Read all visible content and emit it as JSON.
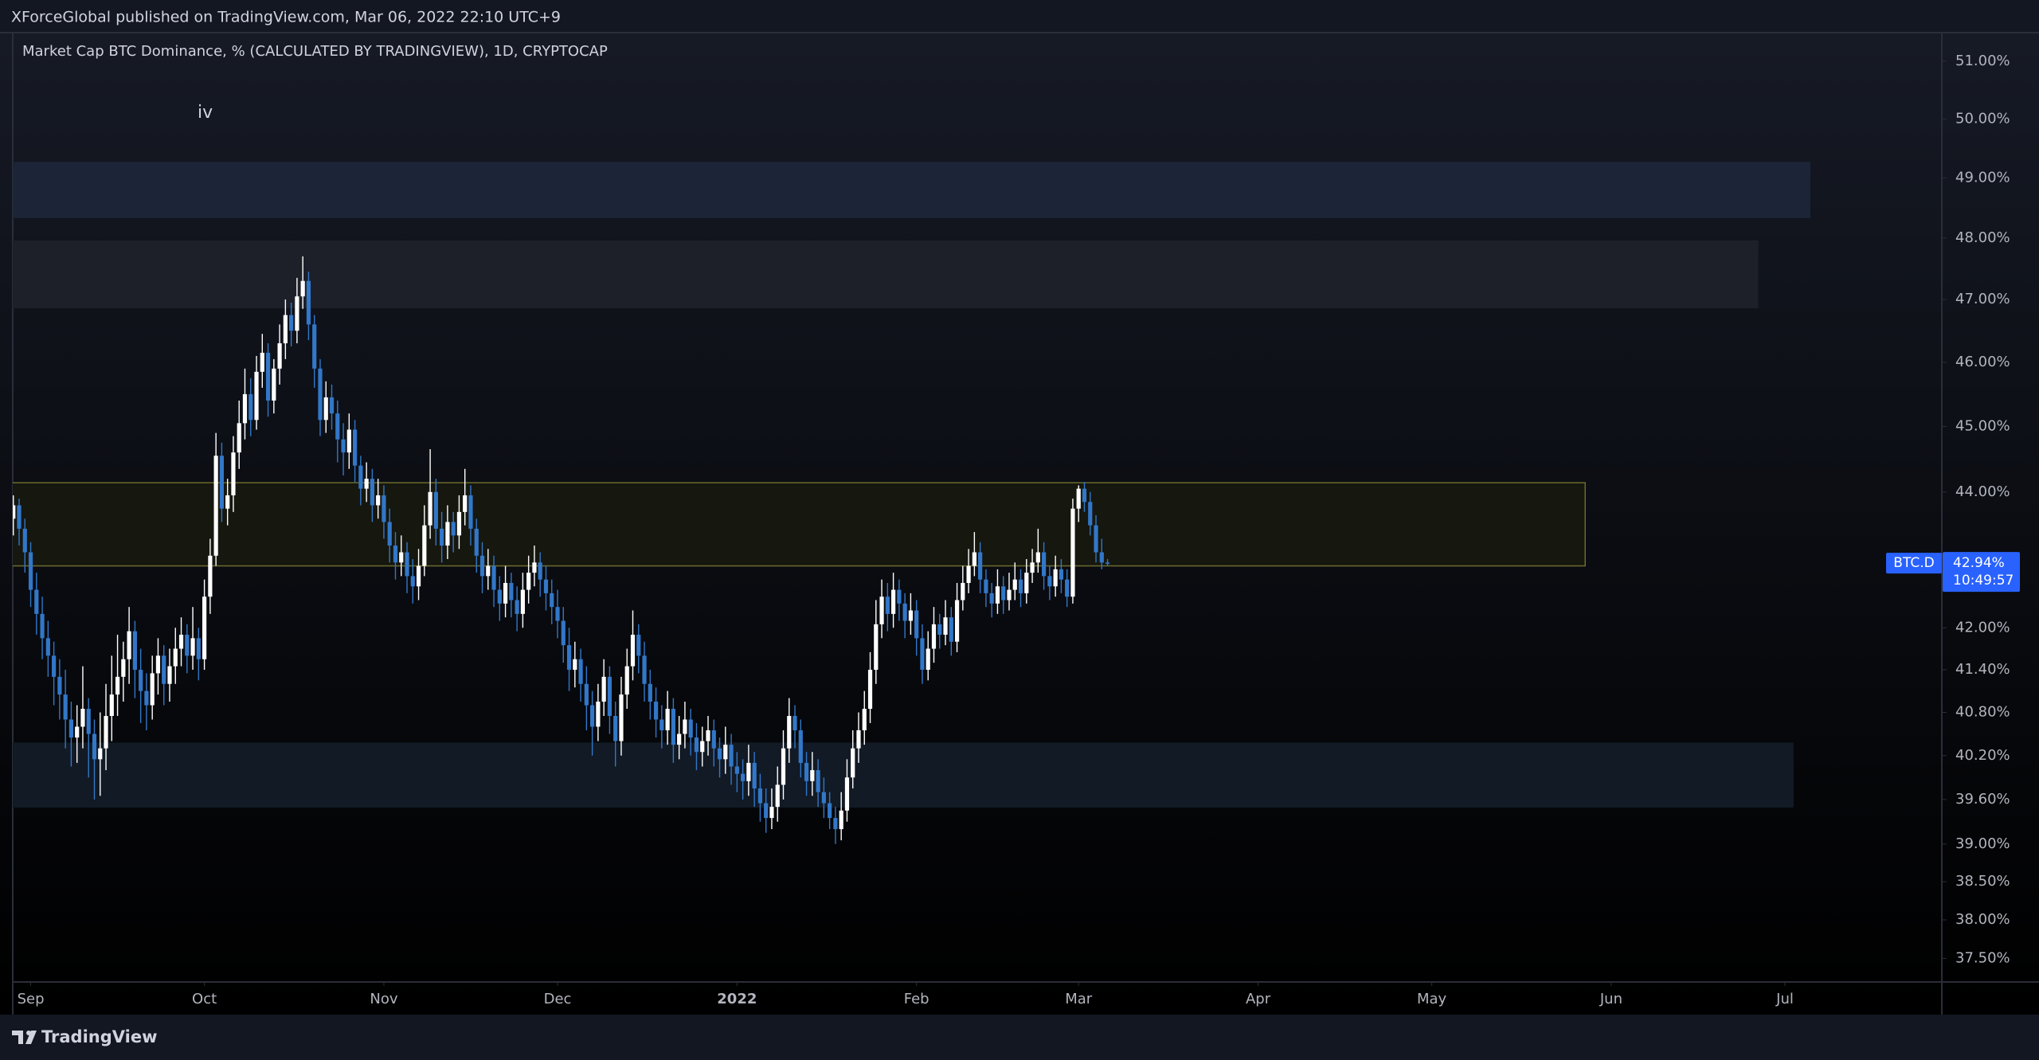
{
  "chart_data": {
    "type": "candlestick",
    "publisher_line": "XForceGlobal published on TradingView.com, Mar 06, 2022 22:10 UTC+9",
    "title": "Market Cap BTC Dominance, % (CALCULATED BY TRADINGVIEW), 1D, CRYPTOCAP",
    "annotation": "iv",
    "brand": "TradingView",
    "symbol": "BTC.D",
    "last": {
      "value": 42.94,
      "label": "42.94%"
    },
    "countdown": "10:49:57",
    "log_scale": true,
    "grid": false,
    "up_color": "#ffffff",
    "down_color": "#3277c8",
    "ylim": [
      37.2,
      51.5
    ],
    "yticks": [
      {
        "value": 37.5,
        "label": "37.50%"
      },
      {
        "value": 38,
        "label": "38.00%"
      },
      {
        "value": 38.5,
        "label": "38.50%"
      },
      {
        "value": 39,
        "label": "39.00%"
      },
      {
        "value": 39.6,
        "label": "39.60%"
      },
      {
        "value": 40.2,
        "label": "40.20%"
      },
      {
        "value": 40.8,
        "label": "40.80%"
      },
      {
        "value": 41.4,
        "label": "41.40%"
      },
      {
        "value": 42,
        "label": "42.00%"
      },
      {
        "value": 44,
        "label": "44.00%"
      },
      {
        "value": 45,
        "label": "45.00%"
      },
      {
        "value": 46,
        "label": "46.00%"
      },
      {
        "value": 47,
        "label": "47.00%"
      },
      {
        "value": 48,
        "label": "48.00%"
      },
      {
        "value": 49,
        "label": "49.00%"
      },
      {
        "value": 50,
        "label": "50.00%"
      },
      {
        "value": 51,
        "label": "51.00%"
      }
    ],
    "xlim": [
      -3.1,
      330.1
    ],
    "xticks": [
      {
        "value": 0,
        "label": "Sep"
      },
      {
        "value": 30,
        "label": "Oct"
      },
      {
        "value": 61,
        "label": "Nov"
      },
      {
        "value": 91,
        "label": "Dec"
      },
      {
        "value": 122,
        "label": "2022"
      },
      {
        "value": 153,
        "label": "Feb"
      },
      {
        "value": 181,
        "label": "Mar"
      },
      {
        "value": 212,
        "label": "Apr"
      },
      {
        "value": 242,
        "label": "May"
      },
      {
        "value": 273,
        "label": "Jun"
      },
      {
        "value": 303,
        "label": "Jul"
      }
    ],
    "zones": [
      {
        "ylim": [
          48.33,
          49.27
        ],
        "x_end": 307.4,
        "color": "#1b2537",
        "border": "none"
      },
      {
        "ylim": [
          46.86,
          47.96
        ],
        "x_end": 298.4,
        "color": "#1d2029",
        "border": "none"
      },
      {
        "ylim": [
          42.9,
          44.14
        ],
        "x_end": 268.5,
        "color": "#16170f",
        "border": "#6b6b2c"
      },
      {
        "ylim": [
          39.49,
          40.38
        ],
        "x_end": 304.5,
        "color": "#121a25",
        "border": "none"
      }
    ],
    "x": [
      -3,
      -2,
      -1,
      0,
      1,
      2,
      3,
      4,
      5,
      6,
      7,
      8,
      9,
      10,
      11,
      12,
      13,
      14,
      15,
      16,
      17,
      18,
      19,
      20,
      21,
      22,
      23,
      24,
      25,
      26,
      27,
      28,
      29,
      30,
      31,
      32,
      33,
      34,
      35,
      36,
      37,
      38,
      39,
      40,
      41,
      42,
      43,
      44,
      45,
      46,
      47,
      48,
      49,
      50,
      51,
      52,
      53,
      54,
      55,
      56,
      57,
      58,
      59,
      60,
      61,
      62,
      63,
      64,
      65,
      66,
      67,
      68,
      69,
      70,
      71,
      72,
      73,
      74,
      75,
      76,
      77,
      78,
      79,
      80,
      81,
      82,
      83,
      84,
      85,
      86,
      87,
      88,
      89,
      90,
      91,
      92,
      93,
      94,
      95,
      96,
      97,
      98,
      99,
      100,
      101,
      102,
      103,
      104,
      105,
      106,
      107,
      108,
      109,
      110,
      111,
      112,
      113,
      114,
      115,
      116,
      117,
      118,
      119,
      120,
      121,
      122,
      123,
      124,
      125,
      126,
      127,
      128,
      129,
      130,
      131,
      132,
      133,
      134,
      135,
      136,
      137,
      138,
      139,
      140,
      141,
      142,
      143,
      144,
      145,
      146,
      147,
      148,
      149,
      150,
      151,
      152,
      153,
      154,
      155,
      156,
      157,
      158,
      159,
      160,
      161,
      162,
      163,
      164,
      165,
      166,
      167,
      168,
      169,
      170,
      171,
      172,
      173,
      174,
      175,
      176,
      177,
      178,
      179,
      180,
      181,
      182,
      183,
      184,
      185,
      186
    ],
    "ohlc": [
      [
        43.6,
        43.95,
        43.35,
        43.8
      ],
      [
        43.8,
        43.9,
        43.2,
        43.45
      ],
      [
        43.45,
        43.6,
        42.8,
        43.1
      ],
      [
        43.1,
        43.25,
        42.3,
        42.55
      ],
      [
        42.55,
        42.8,
        41.9,
        42.2
      ],
      [
        42.2,
        42.45,
        41.55,
        41.85
      ],
      [
        41.85,
        42.1,
        41.3,
        41.6
      ],
      [
        41.6,
        41.8,
        40.9,
        41.3
      ],
      [
        41.3,
        41.55,
        40.7,
        41.05
      ],
      [
        41.05,
        41.4,
        40.3,
        40.7
      ],
      [
        40.7,
        40.95,
        40.05,
        40.45
      ],
      [
        40.45,
        40.9,
        40.1,
        40.6
      ],
      [
        40.6,
        41.45,
        40.3,
        40.85
      ],
      [
        40.85,
        41.0,
        39.9,
        40.5
      ],
      [
        40.5,
        40.7,
        39.6,
        40.15
      ],
      [
        40.15,
        40.8,
        39.65,
        40.3
      ],
      [
        40.3,
        41.2,
        40.0,
        40.75
      ],
      [
        40.75,
        41.6,
        40.4,
        41.05
      ],
      [
        41.05,
        41.9,
        40.75,
        41.3
      ],
      [
        41.3,
        41.8,
        40.95,
        41.55
      ],
      [
        41.55,
        42.3,
        41.2,
        41.95
      ],
      [
        41.95,
        42.1,
        41.0,
        41.4
      ],
      [
        41.4,
        41.7,
        40.65,
        41.1
      ],
      [
        41.1,
        41.35,
        40.55,
        40.9
      ],
      [
        40.9,
        41.6,
        40.7,
        41.35
      ],
      [
        41.35,
        41.85,
        41.05,
        41.6
      ],
      [
        41.6,
        41.75,
        40.9,
        41.2
      ],
      [
        41.2,
        41.7,
        40.95,
        41.45
      ],
      [
        41.45,
        42.0,
        41.2,
        41.7
      ],
      [
        41.7,
        42.15,
        41.45,
        41.9
      ],
      [
        41.9,
        42.05,
        41.35,
        41.6
      ],
      [
        41.6,
        42.3,
        41.4,
        41.85
      ],
      [
        41.85,
        42.0,
        41.25,
        41.55
      ],
      [
        41.55,
        42.7,
        41.4,
        42.45
      ],
      [
        42.45,
        43.3,
        42.2,
        43.05
      ],
      [
        43.05,
        44.9,
        42.9,
        44.55
      ],
      [
        44.55,
        44.75,
        43.55,
        43.75
      ],
      [
        43.75,
        44.2,
        43.5,
        43.95
      ],
      [
        43.95,
        44.85,
        43.7,
        44.6
      ],
      [
        44.6,
        45.4,
        44.35,
        45.05
      ],
      [
        45.05,
        45.9,
        44.8,
        45.5
      ],
      [
        45.5,
        45.75,
        44.85,
        45.1
      ],
      [
        45.1,
        46.1,
        44.95,
        45.85
      ],
      [
        45.85,
        46.45,
        45.6,
        46.15
      ],
      [
        46.15,
        46.3,
        45.15,
        45.4
      ],
      [
        45.4,
        46.05,
        45.2,
        45.9
      ],
      [
        45.9,
        46.6,
        45.65,
        46.3
      ],
      [
        46.3,
        47.0,
        46.05,
        46.75
      ],
      [
        46.75,
        46.95,
        46.25,
        46.5
      ],
      [
        46.5,
        47.35,
        46.3,
        47.05
      ],
      [
        47.05,
        47.7,
        46.85,
        47.3
      ],
      [
        47.3,
        47.45,
        46.35,
        46.6
      ],
      [
        46.6,
        46.75,
        45.6,
        45.9
      ],
      [
        45.9,
        46.05,
        44.85,
        45.1
      ],
      [
        45.1,
        45.7,
        44.9,
        45.45
      ],
      [
        45.45,
        45.65,
        44.95,
        45.2
      ],
      [
        45.2,
        45.4,
        44.45,
        44.8
      ],
      [
        44.8,
        45.05,
        44.25,
        44.6
      ],
      [
        44.6,
        45.2,
        44.35,
        44.95
      ],
      [
        44.95,
        45.1,
        44.15,
        44.4
      ],
      [
        44.4,
        44.55,
        43.8,
        44.05
      ],
      [
        44.05,
        44.45,
        43.85,
        44.2
      ],
      [
        44.2,
        44.35,
        43.55,
        43.8
      ],
      [
        43.8,
        44.2,
        43.6,
        43.95
      ],
      [
        43.95,
        44.1,
        43.3,
        43.55
      ],
      [
        43.55,
        43.75,
        42.95,
        43.2
      ],
      [
        43.2,
        43.4,
        42.7,
        42.95
      ],
      [
        42.95,
        43.35,
        42.75,
        43.1
      ],
      [
        43.1,
        43.25,
        42.5,
        42.75
      ],
      [
        42.75,
        43.0,
        42.35,
        42.6
      ],
      [
        42.6,
        43.15,
        42.4,
        42.9
      ],
      [
        42.9,
        43.8,
        42.75,
        43.5
      ],
      [
        43.5,
        44.65,
        43.3,
        44.0
      ],
      [
        44.0,
        44.2,
        43.2,
        43.45
      ],
      [
        43.45,
        43.7,
        42.95,
        43.2
      ],
      [
        43.2,
        43.8,
        43.0,
        43.55
      ],
      [
        43.55,
        43.7,
        43.1,
        43.35
      ],
      [
        43.35,
        43.95,
        43.15,
        43.7
      ],
      [
        43.7,
        44.35,
        43.5,
        43.95
      ],
      [
        43.95,
        44.1,
        43.2,
        43.45
      ],
      [
        43.45,
        43.6,
        42.8,
        43.05
      ],
      [
        43.05,
        43.25,
        42.5,
        42.75
      ],
      [
        42.75,
        43.15,
        42.55,
        42.9
      ],
      [
        42.9,
        43.05,
        42.3,
        42.55
      ],
      [
        42.55,
        42.75,
        42.1,
        42.35
      ],
      [
        42.35,
        42.9,
        42.15,
        42.65
      ],
      [
        42.65,
        42.8,
        42.15,
        42.4
      ],
      [
        42.4,
        42.6,
        41.95,
        42.2
      ],
      [
        42.2,
        42.8,
        42.0,
        42.55
      ],
      [
        42.55,
        43.05,
        42.35,
        42.8
      ],
      [
        42.8,
        43.2,
        42.6,
        42.95
      ],
      [
        42.95,
        43.1,
        42.45,
        42.7
      ],
      [
        42.7,
        42.9,
        42.25,
        42.5
      ],
      [
        42.5,
        42.7,
        42.05,
        42.3
      ],
      [
        42.3,
        42.55,
        41.85,
        42.1
      ],
      [
        42.1,
        42.3,
        41.5,
        41.75
      ],
      [
        41.75,
        42.0,
        41.1,
        41.4
      ],
      [
        41.4,
        41.8,
        41.15,
        41.55
      ],
      [
        41.55,
        41.7,
        40.95,
        41.2
      ],
      [
        41.2,
        41.45,
        40.55,
        40.9
      ],
      [
        40.9,
        41.1,
        40.2,
        40.6
      ],
      [
        40.6,
        41.2,
        40.4,
        40.95
      ],
      [
        40.95,
        41.55,
        40.75,
        41.3
      ],
      [
        41.3,
        41.45,
        40.5,
        40.75
      ],
      [
        40.75,
        40.95,
        40.05,
        40.4
      ],
      [
        40.4,
        41.3,
        40.2,
        41.05
      ],
      [
        41.05,
        41.7,
        40.85,
        41.45
      ],
      [
        41.45,
        42.25,
        41.25,
        41.9
      ],
      [
        41.9,
        42.05,
        41.35,
        41.6
      ],
      [
        41.6,
        41.8,
        40.95,
        41.2
      ],
      [
        41.2,
        41.4,
        40.7,
        40.95
      ],
      [
        40.95,
        41.15,
        40.45,
        40.7
      ],
      [
        40.7,
        40.9,
        40.3,
        40.55
      ],
      [
        40.55,
        41.1,
        40.35,
        40.85
      ],
      [
        40.85,
        41.0,
        40.1,
        40.35
      ],
      [
        40.35,
        40.75,
        40.15,
        40.5
      ],
      [
        40.5,
        40.95,
        40.3,
        40.7
      ],
      [
        40.7,
        40.85,
        40.2,
        40.45
      ],
      [
        40.45,
        40.65,
        40.0,
        40.25
      ],
      [
        40.25,
        40.6,
        40.05,
        40.4
      ],
      [
        40.4,
        40.75,
        40.2,
        40.55
      ],
      [
        40.55,
        40.7,
        40.05,
        40.3
      ],
      [
        40.3,
        40.45,
        39.9,
        40.15
      ],
      [
        40.15,
        40.6,
        39.95,
        40.35
      ],
      [
        40.35,
        40.5,
        39.8,
        40.05
      ],
      [
        40.05,
        40.25,
        39.7,
        39.95
      ],
      [
        39.95,
        40.15,
        39.6,
        39.85
      ],
      [
        39.85,
        40.35,
        39.65,
        40.1
      ],
      [
        40.1,
        40.25,
        39.5,
        39.75
      ],
      [
        39.75,
        39.95,
        39.3,
        39.55
      ],
      [
        39.55,
        39.75,
        39.15,
        39.35
      ],
      [
        39.35,
        39.75,
        39.2,
        39.5
      ],
      [
        39.5,
        40.05,
        39.3,
        39.8
      ],
      [
        39.8,
        40.55,
        39.6,
        40.3
      ],
      [
        40.3,
        41.0,
        40.1,
        40.75
      ],
      [
        40.75,
        40.9,
        40.3,
        40.55
      ],
      [
        40.55,
        40.7,
        39.9,
        40.1
      ],
      [
        40.1,
        40.25,
        39.65,
        39.85
      ],
      [
        39.85,
        40.25,
        39.65,
        40.0
      ],
      [
        40.0,
        40.15,
        39.5,
        39.7
      ],
      [
        39.7,
        39.9,
        39.35,
        39.55
      ],
      [
        39.55,
        39.7,
        39.2,
        39.35
      ],
      [
        39.35,
        39.5,
        39.0,
        39.2
      ],
      [
        39.2,
        39.7,
        39.05,
        39.45
      ],
      [
        39.45,
        40.15,
        39.3,
        39.9
      ],
      [
        39.9,
        40.55,
        39.75,
        40.3
      ],
      [
        40.3,
        40.8,
        40.1,
        40.55
      ],
      [
        40.55,
        41.1,
        40.35,
        40.85
      ],
      [
        40.85,
        41.65,
        40.65,
        41.4
      ],
      [
        41.4,
        42.4,
        41.2,
        42.05
      ],
      [
        42.05,
        42.7,
        41.85,
        42.45
      ],
      [
        42.45,
        42.65,
        41.95,
        42.2
      ],
      [
        42.2,
        42.8,
        42.0,
        42.55
      ],
      [
        42.55,
        42.7,
        42.1,
        42.35
      ],
      [
        42.35,
        42.5,
        41.85,
        42.1
      ],
      [
        42.1,
        42.5,
        41.9,
        42.25
      ],
      [
        42.25,
        42.4,
        41.6,
        41.85
      ],
      [
        41.85,
        42.05,
        41.2,
        41.4
      ],
      [
        41.4,
        41.95,
        41.25,
        41.7
      ],
      [
        41.7,
        42.3,
        41.5,
        42.05
      ],
      [
        42.05,
        42.2,
        41.7,
        41.9
      ],
      [
        41.9,
        42.4,
        41.75,
        42.15
      ],
      [
        42.15,
        42.3,
        41.6,
        41.8
      ],
      [
        41.8,
        42.65,
        41.65,
        42.4
      ],
      [
        42.4,
        42.9,
        42.25,
        42.65
      ],
      [
        42.65,
        43.15,
        42.5,
        42.9
      ],
      [
        42.9,
        43.4,
        42.75,
        43.1
      ],
      [
        43.1,
        43.25,
        42.5,
        42.7
      ],
      [
        42.7,
        42.85,
        42.3,
        42.5
      ],
      [
        42.5,
        42.65,
        42.15,
        42.35
      ],
      [
        42.35,
        42.85,
        42.2,
        42.6
      ],
      [
        42.6,
        42.75,
        42.2,
        42.4
      ],
      [
        42.4,
        42.8,
        42.25,
        42.55
      ],
      [
        42.55,
        42.95,
        42.4,
        42.7
      ],
      [
        42.7,
        42.85,
        42.3,
        42.5
      ],
      [
        42.5,
        43.0,
        42.35,
        42.8
      ],
      [
        42.8,
        43.15,
        42.65,
        42.95
      ],
      [
        42.95,
        43.45,
        42.8,
        43.1
      ],
      [
        43.1,
        43.25,
        42.55,
        42.75
      ],
      [
        42.75,
        42.9,
        42.4,
        42.6
      ],
      [
        42.6,
        43.05,
        42.45,
        42.85
      ],
      [
        42.85,
        43.0,
        42.5,
        42.7
      ],
      [
        42.7,
        42.85,
        42.3,
        42.45
      ],
      [
        42.45,
        43.9,
        42.35,
        43.75
      ],
      [
        43.75,
        44.1,
        43.55,
        44.05
      ],
      [
        44.05,
        44.15,
        43.7,
        43.85
      ],
      [
        43.85,
        44.0,
        43.35,
        43.5
      ],
      [
        43.5,
        43.65,
        42.95,
        43.1
      ],
      [
        43.1,
        43.3,
        42.85,
        42.95
      ],
      [
        42.95,
        43.0,
        42.9,
        42.94
      ]
    ]
  }
}
